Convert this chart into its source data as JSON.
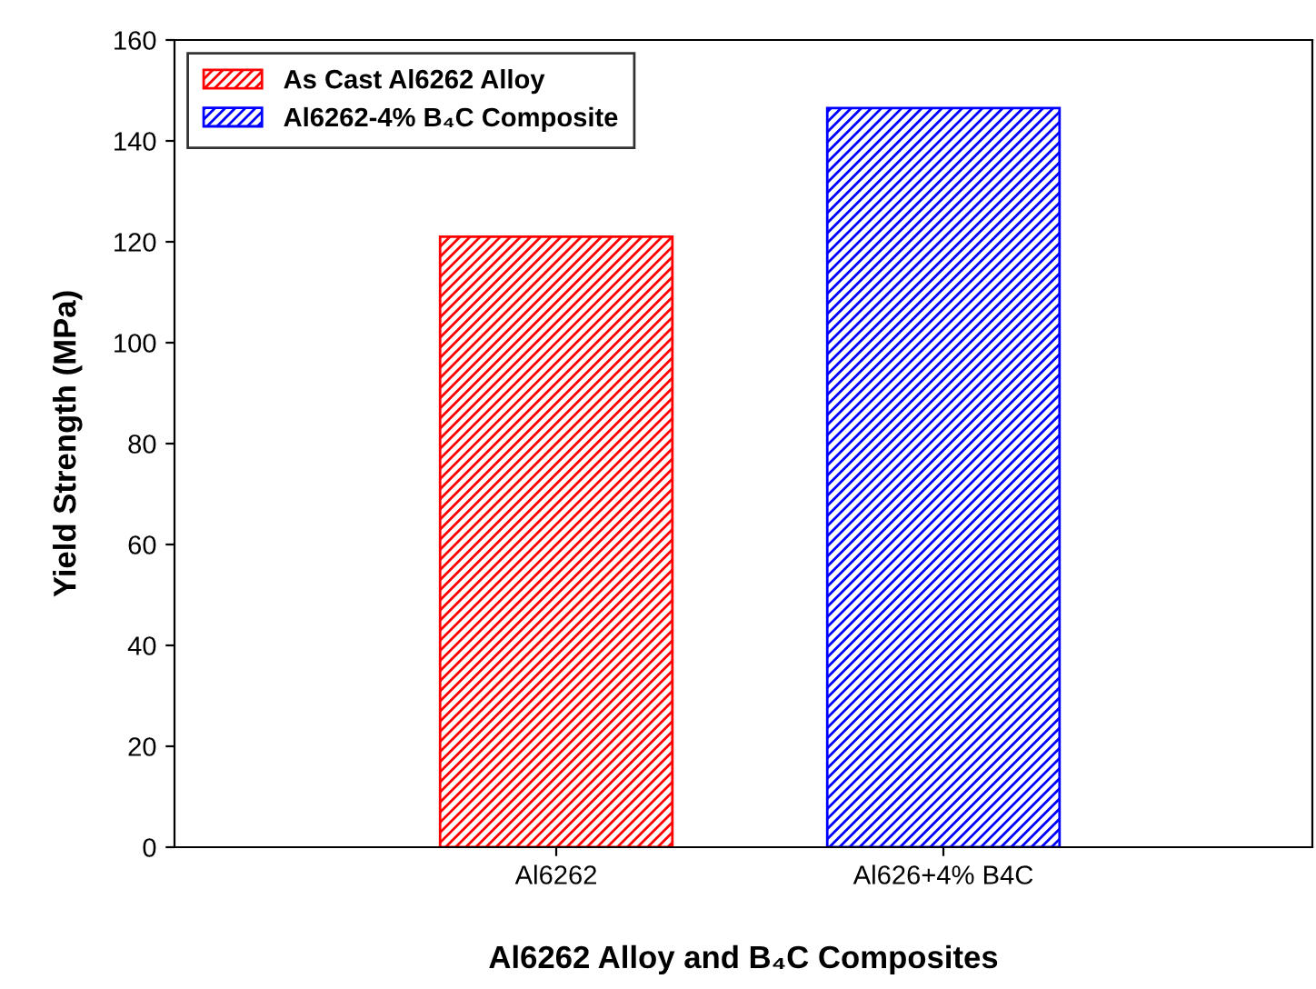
{
  "chart_data": {
    "type": "bar",
    "xlabel": "Al6262 Alloy and B₄C Composites",
    "ylabel": "Yield Strength (MPa)",
    "categories": [
      "Al6262",
      "Al626+4% B4C"
    ],
    "series": [
      {
        "name": "As Cast Al6262 Alloy",
        "color": "#ff0000",
        "values": [
          121,
          null
        ]
      },
      {
        "name": "Al6262-4% B₄C Composite",
        "color": "#0000ff",
        "values": [
          null,
          146.5
        ]
      }
    ],
    "ylim": [
      0,
      160
    ],
    "yticks": [
      0,
      20,
      40,
      60,
      80,
      100,
      120,
      140,
      160
    ],
    "grid": false,
    "legend": "top left"
  }
}
